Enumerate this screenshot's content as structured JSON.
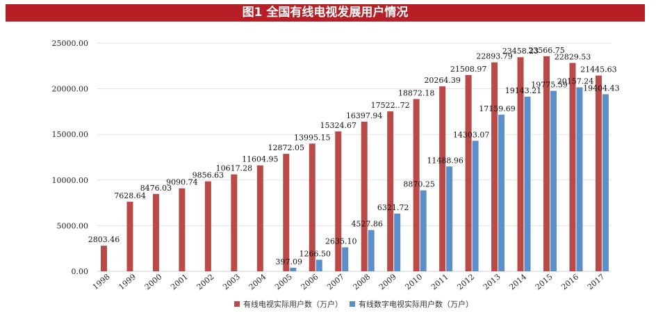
{
  "chart_data": {
    "type": "bar",
    "title": "图1 全国有线电视发展用户情况",
    "categories": [
      "1998",
      "1999",
      "2000",
      "2001",
      "2002",
      "2003",
      "2004",
      "2005",
      "2006",
      "2007",
      "2008",
      "2009",
      "2010",
      "2011",
      "2012",
      "2013",
      "2014",
      "2015",
      "2016",
      "2017"
    ],
    "ylim": [
      0,
      25000
    ],
    "yticks": [
      "0.00",
      "5000.00",
      "10000.00",
      "15000.00",
      "20000.00",
      "25000.00"
    ],
    "grid": true,
    "legend": "bottom",
    "series": [
      {
        "name": "有线电视实际用户数（万户）",
        "color": "#b94a48",
        "values": [
          2803.46,
          7628.64,
          8476.03,
          9090.74,
          9856.63,
          10617.28,
          11604.95,
          12872.05,
          13995.15,
          15324.67,
          16397.94,
          17522.72,
          18872.18,
          20264.39,
          21508.97,
          22893.79,
          23458.23,
          23566.75,
          22829.53,
          21445.63
        ],
        "labels": [
          "2803.46",
          "7628.64",
          "8476.03",
          "9090.74",
          "9856.63",
          "10617.28",
          "11604.95",
          "12872.05",
          "13995.15",
          "15324.67",
          "16397.94",
          "17522..72",
          "18872.18",
          "20264.39",
          "21508.97",
          "22893.79",
          "23458.23",
          "23566.75",
          "22829.53",
          "21445.63"
        ]
      },
      {
        "name": "有线数字电视实际用户数（万户）",
        "color": "#5b8fc9",
        "values": [
          null,
          null,
          null,
          null,
          null,
          null,
          null,
          397.09,
          1266.5,
          2635.1,
          4527.86,
          6321.72,
          8870.25,
          11488.96,
          14303.07,
          17159.69,
          19143.21,
          19775.59,
          20157.24,
          19404.43
        ],
        "labels": [
          null,
          null,
          null,
          null,
          null,
          null,
          null,
          "397.09",
          "1266.50",
          "2635.10",
          "4527.86",
          "6321.72",
          "8870.25",
          "11488.96",
          "14303.07",
          "17159.69",
          "19143.21",
          "19775.59",
          "20157.24",
          "19404.43"
        ]
      }
    ]
  }
}
